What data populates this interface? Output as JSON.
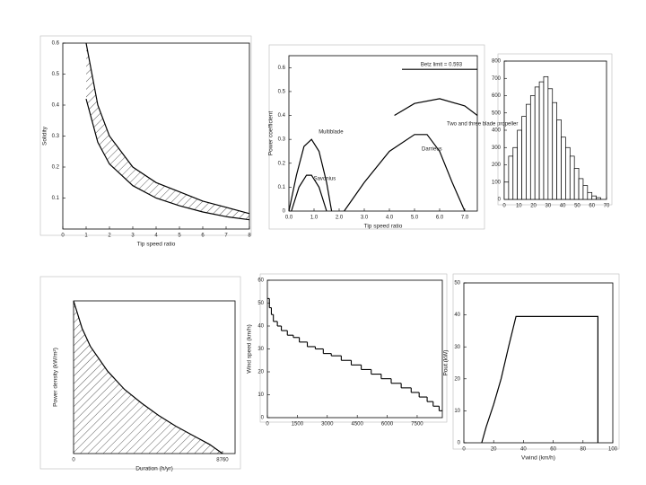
{
  "chart_data": [
    {
      "type": "band",
      "xlabel": "Tip speed ratio",
      "ylabel": "Solidity",
      "xlim": [
        0,
        8
      ],
      "xticks": [
        0,
        1,
        2,
        3,
        4,
        5,
        6,
        7,
        8
      ],
      "ylim": [
        0,
        0.6
      ],
      "yticks": [
        0.1,
        0.2,
        0.3,
        0.4,
        0.5,
        0.6
      ],
      "series": [
        {
          "x": [
            1,
            1.5,
            2,
            3,
            4,
            5,
            6,
            7,
            8
          ],
          "values": [
            0.6,
            0.4,
            0.3,
            0.2,
            0.15,
            0.12,
            0.09,
            0.07,
            0.05
          ]
        },
        {
          "x": [
            1,
            1.5,
            2,
            3,
            4,
            5,
            6,
            7,
            8
          ],
          "values": [
            0.42,
            0.28,
            0.21,
            0.14,
            0.1,
            0.075,
            0.055,
            0.04,
            0.03
          ]
        }
      ]
    },
    {
      "type": "line",
      "xlabel": "Tip speed ratio",
      "ylabel": "Power coefficient",
      "xlim": [
        0,
        7.5
      ],
      "xticks": [
        {
          "value": 0,
          "label": "0.0"
        },
        {
          "value": 1,
          "label": "1.0"
        },
        {
          "value": 2,
          "label": "2.0"
        },
        {
          "value": 3,
          "label": "3.0"
        },
        {
          "value": 4,
          "label": "4.0"
        },
        {
          "value": 5,
          "label": "5.0"
        },
        {
          "value": 6,
          "label": "6.0"
        },
        {
          "value": 7,
          "label": "7.0"
        }
      ],
      "ylim": [
        0,
        0.65
      ],
      "yticks": [
        0,
        0.1,
        0.2,
        0.3,
        0.4,
        0.5,
        0.6
      ],
      "hline": {
        "value": 0.593,
        "label": "Betz limit = 0.593"
      },
      "series": [
        {
          "name": "Multiblade",
          "x": [
            0,
            0.3,
            0.6,
            0.9,
            1.2,
            1.5,
            1.7
          ],
          "values": [
            0,
            0.15,
            0.27,
            0.3,
            0.25,
            0.12,
            0
          ]
        },
        {
          "name": "Savonius",
          "x": [
            0.1,
            0.4,
            0.7,
            0.9,
            1.2,
            1.5
          ],
          "values": [
            0,
            0.1,
            0.15,
            0.15,
            0.1,
            0
          ]
        },
        {
          "name": "Darrieus",
          "x": [
            2.2,
            3,
            4,
            5,
            5.5,
            6,
            6.5,
            7
          ],
          "values": [
            0,
            0.12,
            0.25,
            0.32,
            0.32,
            0.25,
            0.12,
            0
          ]
        },
        {
          "name": "Two and three blade propeller",
          "x": [
            4.2,
            5,
            6,
            7,
            7.5
          ],
          "values": [
            0.4,
            0.45,
            0.47,
            0.44,
            0.4
          ]
        }
      ]
    },
    {
      "type": "histogram",
      "xlim": [
        0,
        70
      ],
      "xticks": [
        0,
        10,
        20,
        30,
        40,
        50,
        60,
        70
      ],
      "ylim": [
        0,
        800
      ],
      "yticks": [
        0,
        100,
        200,
        300,
        400,
        500,
        600,
        700,
        800
      ],
      "bins": [
        0,
        3,
        6,
        9,
        12,
        15,
        18,
        21,
        24,
        27,
        30,
        33,
        36,
        39,
        42,
        45,
        48,
        51,
        54,
        57,
        60,
        63,
        66
      ],
      "counts": [
        100,
        250,
        300,
        400,
        480,
        550,
        600,
        650,
        680,
        710,
        640,
        560,
        460,
        360,
        300,
        250,
        180,
        120,
        80,
        40,
        20,
        10
      ]
    },
    {
      "type": "area",
      "xlabel": "Duration (h/yr)",
      "ylabel": "Power density (kW/m²)",
      "xlim": [
        0,
        9500
      ],
      "xticks": [
        0,
        8760
      ],
      "ylim": [
        0,
        100
      ],
      "yticks": [],
      "series": [
        {
          "x": [
            0,
            500,
            1000,
            2000,
            3000,
            4000,
            5000,
            6000,
            7000,
            8000,
            8760
          ],
          "values": [
            100,
            82,
            70,
            54,
            42,
            33,
            25,
            18,
            12,
            6,
            0
          ]
        }
      ]
    },
    {
      "type": "step",
      "ylabel": "Wind speed (km/h)",
      "xlim": [
        0,
        8760
      ],
      "xticks": [
        0,
        1500,
        3000,
        4500,
        6000,
        7500
      ],
      "ylim": [
        0,
        60
      ],
      "yticks": [
        0,
        10,
        20,
        30,
        40,
        50,
        60
      ],
      "series": [
        {
          "x": [
            0,
            100,
            200,
            300,
            500,
            700,
            1000,
            1300,
            1600,
            2000,
            2400,
            2800,
            3200,
            3700,
            4200,
            4700,
            5200,
            5700,
            6200,
            6700,
            7200,
            7600,
            8000,
            8300,
            8600
          ],
          "values": [
            52,
            48,
            45,
            42,
            40,
            38,
            36,
            35,
            33,
            31,
            30,
            28,
            27,
            25,
            23,
            21,
            19,
            17,
            15,
            13,
            11,
            9,
            7,
            5,
            3
          ]
        }
      ]
    },
    {
      "type": "line",
      "xlabel": "Vwind (km/h)",
      "ylabel": "Pout (kW)",
      "xlim": [
        0,
        100
      ],
      "xticks": [
        0,
        20,
        40,
        60,
        80,
        100
      ],
      "ylim": [
        0,
        50
      ],
      "yticks": [
        0,
        10,
        20,
        30,
        40,
        50
      ],
      "series": [
        {
          "x": [
            12,
            15,
            20,
            25,
            30,
            35,
            90,
            90
          ],
          "values": [
            0,
            5,
            12,
            20,
            30,
            39.5,
            39.5,
            0
          ]
        }
      ]
    }
  ]
}
